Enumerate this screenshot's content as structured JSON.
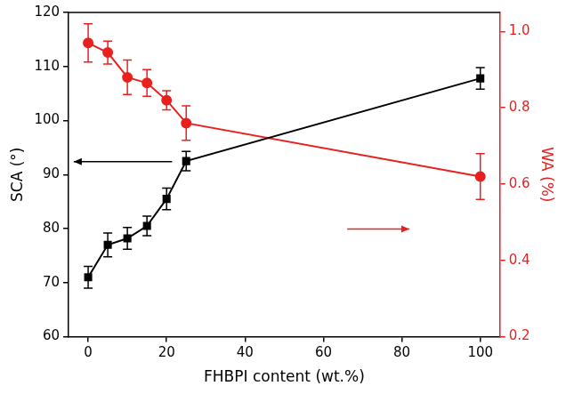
{
  "chart_data": {
    "type": "line",
    "x_label": "FHBPI content (wt.%)",
    "y_label": "SCA (°)",
    "y2_label": "WA (%)",
    "x": [
      0,
      5,
      10,
      15,
      20,
      25,
      100
    ],
    "xlim": [
      -5,
      105
    ],
    "xticks": [
      0,
      20,
      40,
      60,
      80,
      100
    ],
    "ylim": [
      60,
      120
    ],
    "yticks": [
      60,
      70,
      80,
      90,
      100,
      110,
      120
    ],
    "y2lim": [
      0.2,
      1.05
    ],
    "y2ticks": [
      0.2,
      0.4,
      0.6,
      0.8,
      {
        "value": 1.0,
        "label": "1.0"
      }
    ],
    "grid": false,
    "series": [
      {
        "name": "SCA",
        "color": "#000000",
        "marker": "square",
        "line_style": "solid",
        "values": [
          71.0,
          77.0,
          78.2,
          80.5,
          85.5,
          92.5,
          107.8
        ],
        "error": [
          2.0,
          2.2,
          2.0,
          1.8,
          2.0,
          1.8,
          2.0
        ]
      },
      {
        "name": "WA",
        "axis": "y2",
        "color": "#e8201f",
        "marker": "circle",
        "line_style": "solid",
        "values": [
          0.97,
          0.945,
          0.88,
          0.865,
          0.82,
          0.76,
          0.62
        ],
        "error": [
          0.05,
          0.03,
          0.045,
          0.035,
          0.025,
          0.045,
          0.06
        ]
      }
    ]
  }
}
